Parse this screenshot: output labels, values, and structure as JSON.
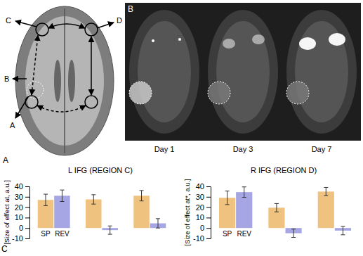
{
  "figure": {
    "panel_labels": [
      "A",
      "B",
      "C"
    ],
    "region_labels": [
      "A",
      "B",
      "C",
      "D"
    ],
    "day_labels": [
      "Day 1",
      "Day 3",
      "Day 7"
    ]
  },
  "chart_data": [
    {
      "type": "bar",
      "title": "L IFG (REGION C)",
      "y_label": "[Size of effect at, a.u.]",
      "categories": [
        null,
        null,
        null
      ],
      "series": [
        {
          "name": "SP",
          "color": "#efc27f",
          "values": [
            27,
            27.5,
            31
          ],
          "errors": [
            5.5,
            4.5,
            5
          ]
        },
        {
          "name": "REV",
          "color": "#a6a6e4",
          "values": [
            31,
            -2,
            4.5
          ],
          "errors": [
            5.5,
            4,
            4.5
          ]
        }
      ],
      "ylim": [
        -10,
        40
      ],
      "yticks": [
        -10,
        0,
        10,
        20,
        30,
        40
      ],
      "grid": false
    },
    {
      "type": "bar",
      "title": "R IFG (REGION D)",
      "y_label": "[Size of effect at*, a.u.]",
      "categories": [
        null,
        null,
        null
      ],
      "series": [
        {
          "name": "SP",
          "color": "#efc27f",
          "values": [
            29,
            19.5,
            35
          ],
          "errors": [
            6.5,
            4,
            4
          ]
        },
        {
          "name": "REV",
          "color": "#a6a6e4",
          "values": [
            34.5,
            -5,
            -2.5
          ],
          "errors": [
            5,
            4,
            4
          ]
        }
      ],
      "ylim": [
        -10,
        40
      ],
      "yticks": [
        -10,
        0,
        10,
        20,
        30,
        40
      ],
      "grid": false
    }
  ]
}
